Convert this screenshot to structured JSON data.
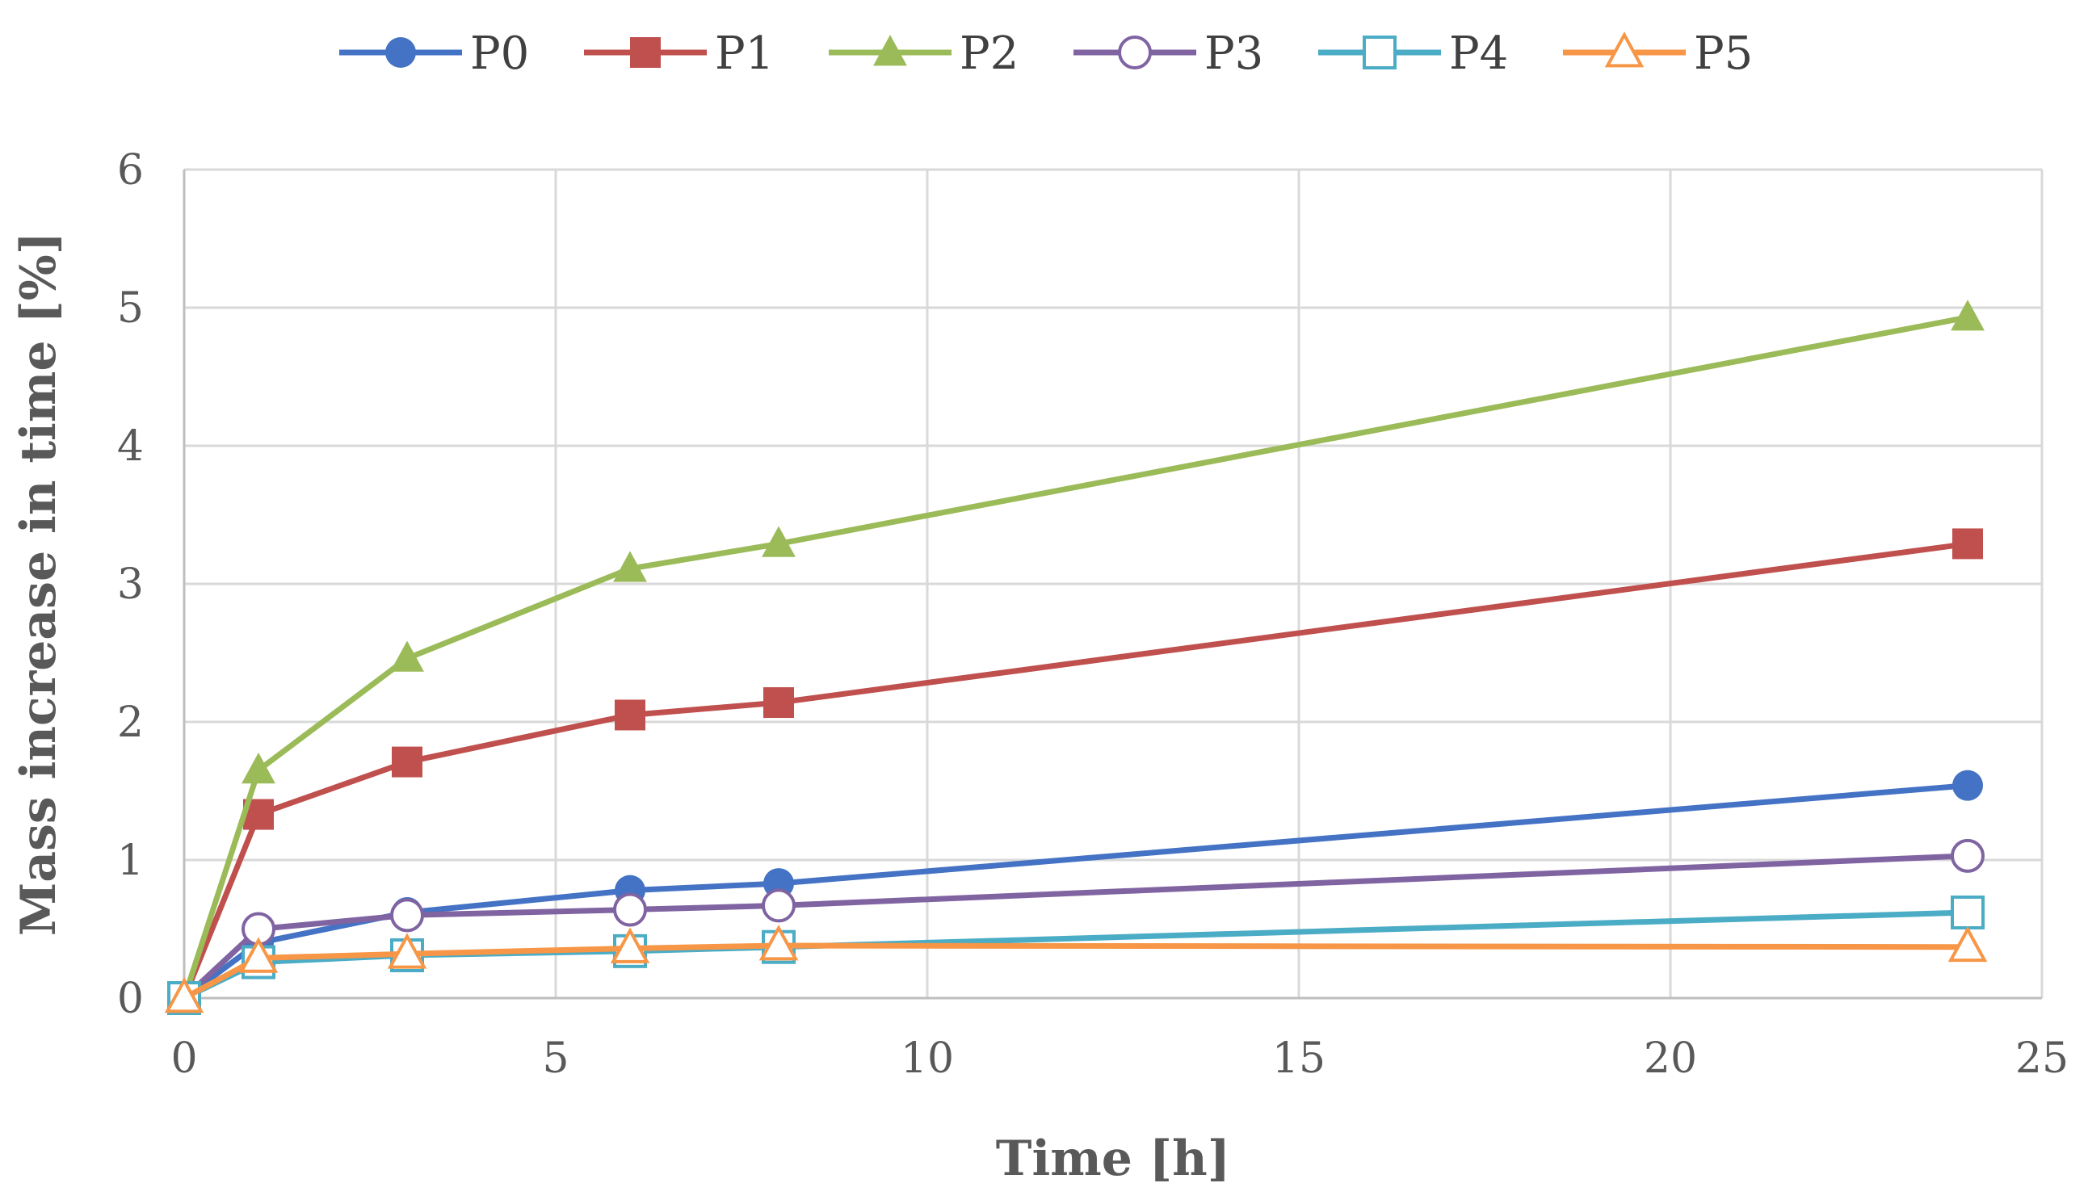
{
  "chart_data": {
    "type": "line",
    "title": "",
    "xlabel": "Time [h]",
    "ylabel": "Mass increase in time [%]",
    "xlim": [
      0,
      25
    ],
    "ylim": [
      0,
      6
    ],
    "xticks": [
      0,
      5,
      10,
      15,
      20,
      25
    ],
    "yticks": [
      0,
      1,
      2,
      3,
      4,
      5,
      6
    ],
    "grid": true,
    "legend_position": "top",
    "x": [
      0,
      1,
      3,
      6,
      8,
      24
    ],
    "series": [
      {
        "name": "P0",
        "color": "#4472C4",
        "marker": "circle",
        "filled": true,
        "values": [
          0,
          0.4,
          0.62,
          0.78,
          0.83,
          1.54
        ]
      },
      {
        "name": "P1",
        "color": "#C0504D",
        "marker": "square",
        "filled": true,
        "values": [
          0,
          1.33,
          1.71,
          2.05,
          2.14,
          3.29
        ]
      },
      {
        "name": "P2",
        "color": "#9BBB59",
        "marker": "triangle",
        "filled": true,
        "values": [
          0,
          1.65,
          2.46,
          3.11,
          3.29,
          4.93
        ]
      },
      {
        "name": "P3",
        "color": "#8064A2",
        "marker": "circle",
        "filled": false,
        "values": [
          0,
          0.5,
          0.6,
          0.64,
          0.67,
          1.03
        ]
      },
      {
        "name": "P4",
        "color": "#4BACC6",
        "marker": "square",
        "filled": false,
        "values": [
          0,
          0.26,
          0.31,
          0.34,
          0.37,
          0.62
        ]
      },
      {
        "name": "P5",
        "color": "#F79646",
        "marker": "triangle",
        "filled": false,
        "values": [
          0,
          0.29,
          0.32,
          0.36,
          0.38,
          0.37
        ]
      }
    ]
  }
}
